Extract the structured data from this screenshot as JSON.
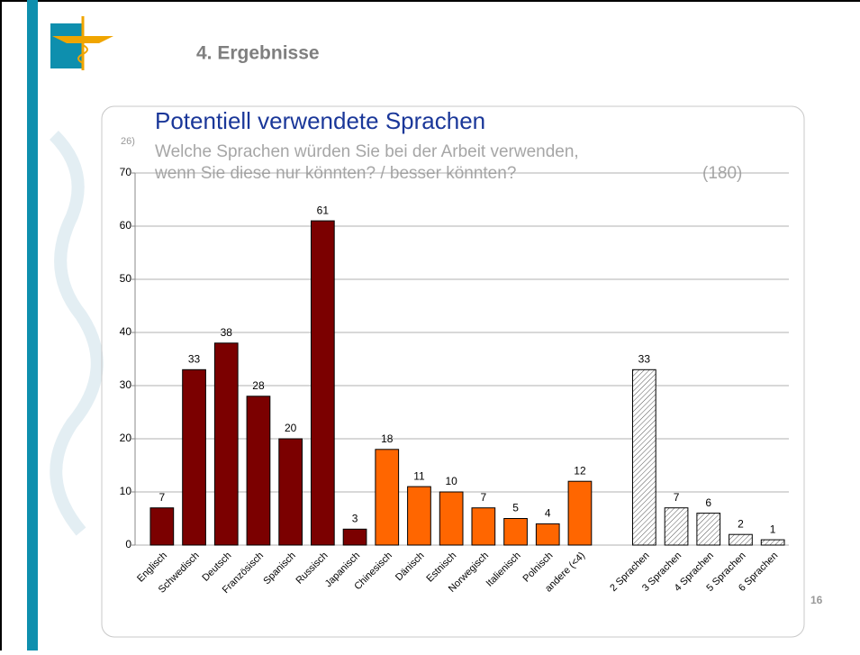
{
  "slide_title": "4. Ergebnisse",
  "page_number": "16",
  "chart_data": {
    "type": "bar",
    "title": "Potentiell verwendete Sprachen",
    "question_number": "26)",
    "subtitle_lines": [
      "Welche Sprachen würden Sie bei der Arbeit verwenden,",
      "wenn Sie diese nur könnten? / besser könnten?"
    ],
    "sample_size": "(180)",
    "categories": [
      "Englisch",
      "Schwedisch",
      "Deutsch",
      "Französisch",
      "Spanisch",
      "Russisch",
      "Japanisch",
      "Chinesisch",
      "Dänisch",
      "Estnisch",
      "Norwegisch",
      "Italienisch",
      "Polnisch",
      "andere (<4)",
      null,
      "2 Sprachen",
      "3 Sprachen",
      "4 Sprachen",
      "5 Sprachen",
      "6 Sprachen"
    ],
    "values": [
      7,
      33,
      38,
      28,
      20,
      61,
      3,
      18,
      11,
      10,
      7,
      5,
      4,
      12,
      null,
      33,
      7,
      6,
      2,
      1
    ],
    "colors": [
      "#7b0000",
      "#7b0000",
      "#7b0000",
      "#7b0000",
      "#7b0000",
      "#7b0000",
      "#7b0000",
      "#ff6600",
      "#ff6600",
      "#ff6600",
      "#ff6600",
      "#ff6600",
      "#ff6600",
      "#ff6600",
      null,
      "#ffffff",
      "#ffffff",
      "#ffffff",
      "#ffffff",
      "#ffffff"
    ],
    "hatched": [
      false,
      false,
      false,
      false,
      false,
      false,
      false,
      false,
      false,
      false,
      false,
      false,
      false,
      false,
      false,
      true,
      true,
      true,
      true,
      true
    ],
    "ylim": [
      0,
      70
    ],
    "yticks": [
      0,
      10,
      20,
      30,
      40,
      50,
      60,
      70
    ],
    "grid": true
  }
}
